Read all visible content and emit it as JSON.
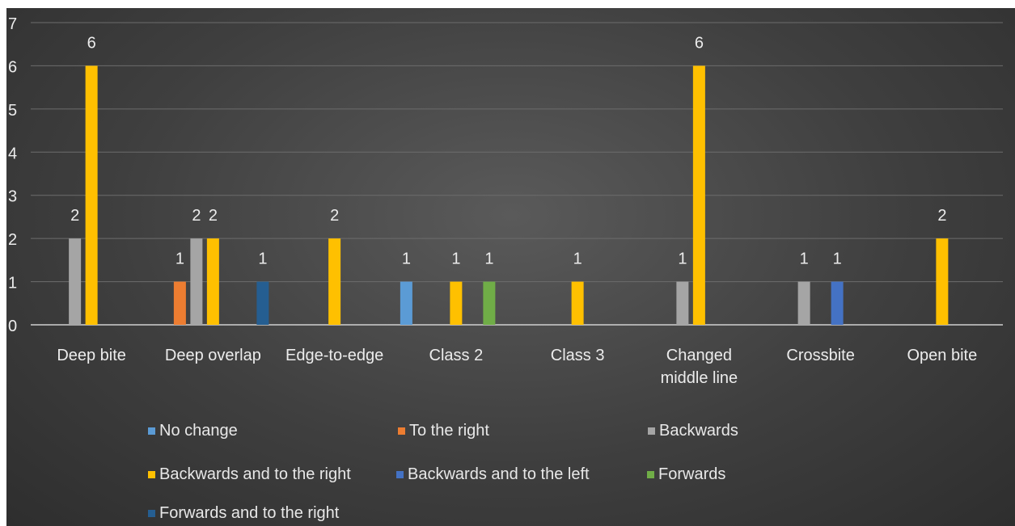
{
  "chart_data": {
    "type": "bar",
    "title": "",
    "xlabel": "",
    "ylabel": "",
    "ylim": [
      0,
      7
    ],
    "yticks": [
      "0",
      "1",
      "2",
      "3",
      "4",
      "5",
      "6",
      "7"
    ],
    "grid": true,
    "legend_position": "bottom",
    "categories": [
      [
        "Deep bite"
      ],
      [
        "Deep overlap"
      ],
      [
        "Edge-to-edge"
      ],
      [
        "Class 2"
      ],
      [
        "Class 3"
      ],
      [
        "Changed",
        "middle line"
      ],
      [
        "Crossbite"
      ],
      [
        "Open bite"
      ]
    ],
    "series": [
      {
        "name": "No change",
        "color": "#5b9bd5",
        "values": [
          null,
          null,
          null,
          1,
          null,
          null,
          null,
          null
        ]
      },
      {
        "name": "To the right",
        "color": "#ed7d31",
        "values": [
          null,
          1,
          null,
          null,
          null,
          null,
          null,
          null
        ]
      },
      {
        "name": "Backwards",
        "color": "#a5a5a5",
        "values": [
          2,
          2,
          null,
          null,
          null,
          1,
          1,
          null
        ]
      },
      {
        "name": "Backwards and to the right",
        "color": "#ffc000",
        "values": [
          6,
          2,
          2,
          1,
          1,
          6,
          null,
          2
        ]
      },
      {
        "name": "Backwards and to the left",
        "color": "#4472c4",
        "values": [
          null,
          null,
          null,
          null,
          null,
          null,
          1,
          null
        ]
      },
      {
        "name": "Forwards",
        "color": "#70ad47",
        "values": [
          null,
          null,
          null,
          1,
          null,
          null,
          null,
          null
        ]
      },
      {
        "name": "Forwards and to the right",
        "color": "#255e91",
        "values": [
          null,
          1,
          null,
          null,
          null,
          null,
          null,
          null
        ]
      }
    ]
  }
}
